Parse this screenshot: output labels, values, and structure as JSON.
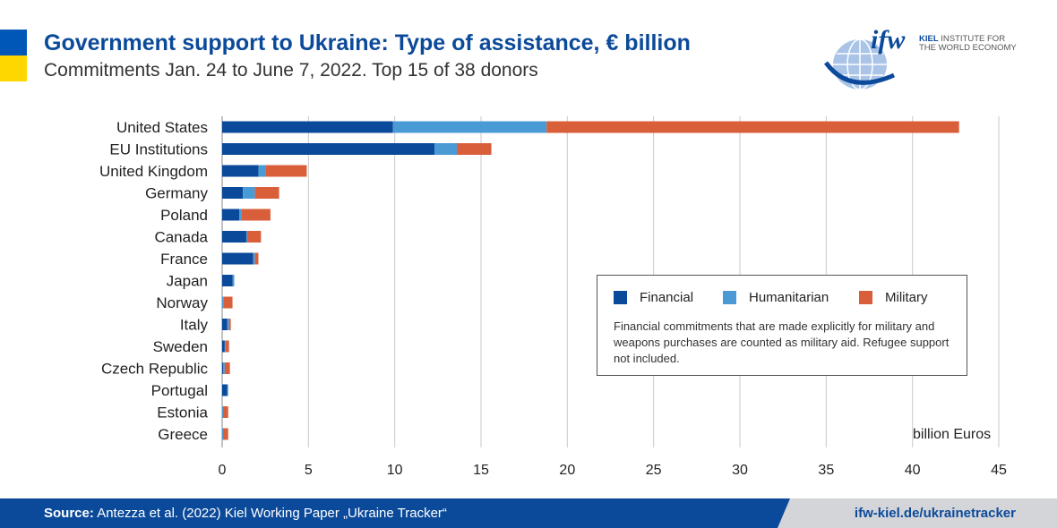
{
  "header": {
    "title": "Government support to Ukraine: Type of assistance, € billion",
    "subtitle": "Commitments Jan. 24 to June 7, 2022. Top 15 of 38 donors"
  },
  "logo": {
    "wordmark": "ifw",
    "line1_bold": "KIEL",
    "line1_rest": " INSTITUTE FOR",
    "line2": "THE WORLD ECONOMY"
  },
  "legend": {
    "items": [
      {
        "label": "Financial",
        "color": "#0b4a9a"
      },
      {
        "label": "Humanitarian",
        "color": "#4a9ad6"
      },
      {
        "label": "Military",
        "color": "#d95f3b"
      }
    ],
    "note": "Financial commitments that are made explicitly for military and weapons purchases are counted as military aid. Refugee support not included."
  },
  "footer": {
    "source_label": "Source:",
    "source_text": " Antezza et al. (2022) Kiel Working Paper „Ukraine Tracker“",
    "url": "ifw-kiel.de/ukrainetracker"
  },
  "colors": {
    "brand_blue": "#0b4a9a",
    "ukraine_blue": "#0057b8",
    "ukraine_yellow": "#ffd700"
  },
  "chart_data": {
    "type": "bar",
    "orientation": "horizontal",
    "stacked": true,
    "categories": [
      "United States",
      "EU Institutions",
      "United Kingdom",
      "Germany",
      "Poland",
      "Canada",
      "France",
      "Japan",
      "Norway",
      "Italy",
      "Sweden",
      "Czech Republic",
      "Portugal",
      "Estonia",
      "Greece"
    ],
    "series": [
      {
        "name": "Financial",
        "color": "#0b4a9a",
        "values": [
          9.9,
          12.3,
          2.1,
          1.2,
          1.0,
          1.4,
          1.8,
          0.6,
          0.0,
          0.3,
          0.15,
          0.05,
          0.3,
          0.0,
          0.0
        ]
      },
      {
        "name": "Humanitarian",
        "color": "#4a9ad6",
        "values": [
          8.9,
          1.3,
          0.4,
          0.7,
          0.1,
          0.05,
          0.1,
          0.1,
          0.1,
          0.1,
          0.05,
          0.1,
          0.05,
          0.05,
          0.05
        ]
      },
      {
        "name": "Military",
        "color": "#d95f3b",
        "values": [
          23.9,
          2.0,
          2.4,
          1.4,
          1.7,
          0.8,
          0.2,
          0.0,
          0.5,
          0.1,
          0.2,
          0.3,
          0.0,
          0.3,
          0.3
        ]
      }
    ],
    "xlim": [
      0,
      45
    ],
    "xticks": [
      "0",
      "5",
      "10",
      "15",
      "20",
      "25",
      "30",
      "35",
      "40",
      "45"
    ],
    "xlabel": "billion Euros",
    "grid": "vertical",
    "legend_position": "right-middle"
  }
}
